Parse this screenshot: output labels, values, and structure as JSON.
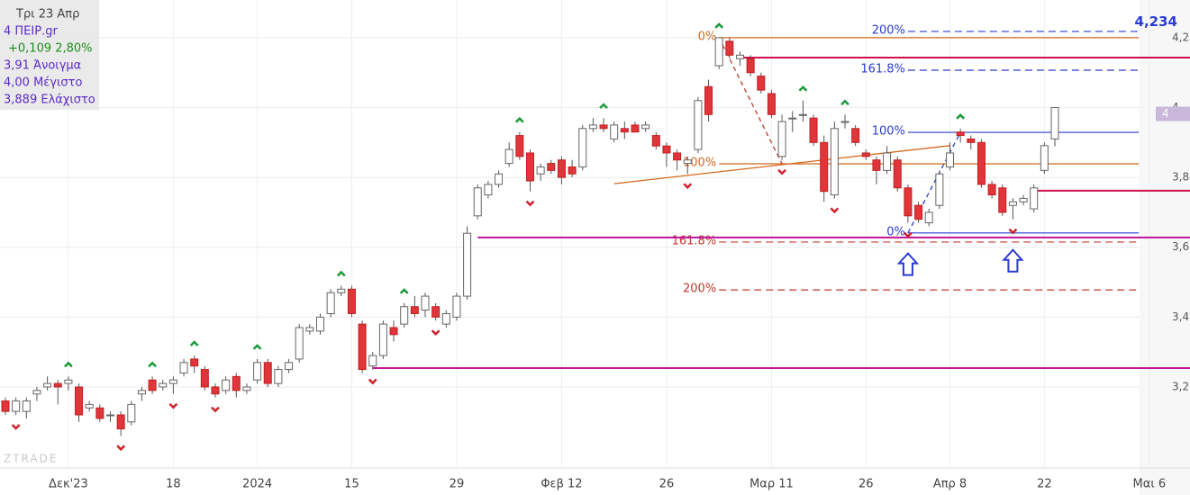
{
  "chart_data": {
    "type": "candlestick",
    "info": [
      "Τρι 23 Απρ",
      "4 ΠΕΙΡ.gr",
      "+0,109 2,80%",
      "3,91 Άνοιγμα",
      "4,00 Μέγιστο",
      "3,889 Ελάχιστο"
    ],
    "watermark": "ZTRADE",
    "categories": [
      null,
      null,
      null,
      null,
      null,
      null,
      "Δεκ'23",
      null,
      null,
      null,
      null,
      null,
      null,
      null,
      null,
      null,
      "18",
      null,
      null,
      null,
      null,
      null,
      null,
      null,
      "2024",
      null,
      null,
      null,
      null,
      null,
      null,
      null,
      null,
      "15",
      null,
      null,
      null,
      null,
      null,
      null,
      null,
      null,
      null,
      "29",
      null,
      null,
      null,
      null,
      null,
      null,
      null,
      null,
      null,
      "Φεβ 12",
      null,
      null,
      null,
      null,
      null,
      null,
      null,
      null,
      null,
      "26",
      null,
      null,
      null,
      null,
      null,
      null,
      null,
      null,
      null,
      "Μαρ 11",
      null,
      null,
      null,
      null,
      null,
      null,
      null,
      null,
      "26",
      null,
      null,
      null,
      null,
      null,
      null,
      null,
      "Απρ 8",
      null,
      null,
      null,
      null,
      null,
      null,
      null,
      null,
      "22",
      null,
      null,
      null,
      null,
      null,
      null,
      null,
      null,
      null,
      "Μαι 6",
      null
    ],
    "open": [
      3.16,
      3.13,
      3.13,
      3.18,
      3.2,
      3.21,
      3.21,
      3.2,
      3.14,
      3.14,
      3.12,
      3.12,
      3.1,
      3.18,
      3.22,
      3.2,
      3.21,
      3.24,
      3.28,
      3.25,
      3.2,
      3.19,
      3.23,
      3.19,
      3.22,
      3.27,
      3.21,
      3.25,
      3.28,
      3.36,
      3.36,
      3.41,
      3.47,
      3.48,
      3.38,
      3.26,
      3.29,
      3.37,
      3.38,
      3.43,
      3.42,
      3.43,
      3.38,
      3.4,
      3.46,
      3.69,
      3.75,
      3.78,
      3.84,
      3.92,
      3.87,
      3.81,
      3.84,
      3.85,
      3.83,
      3.83,
      3.94,
      3.95,
      3.91,
      3.94,
      3.95,
      3.94,
      3.92,
      3.89,
      3.87,
      3.84,
      3.88,
      4.06,
      4.12,
      4.19,
      4.14,
      4.14,
      4.09,
      4.04,
      3.86,
      3.97,
      3.98,
      3.97,
      3.9,
      3.75,
      3.96,
      3.94,
      3.87,
      3.85,
      3.82,
      3.85,
      3.77,
      3.72,
      3.67,
      3.72,
      3.83,
      3.93,
      3.91,
      3.9,
      3.78,
      3.77,
      3.72,
      3.73,
      3.71,
      3.82,
      3.91,
      null,
      null,
      null,
      null,
      null,
      null,
      null,
      null,
      null,
      null
    ],
    "high": [
      3.17,
      3.17,
      3.17,
      3.2,
      3.23,
      3.22,
      3.23,
      3.21,
      3.16,
      3.15,
      3.13,
      3.13,
      3.16,
      3.2,
      3.23,
      3.22,
      3.23,
      3.28,
      3.29,
      3.26,
      3.21,
      3.23,
      3.24,
      3.21,
      3.28,
      3.28,
      3.26,
      3.28,
      3.38,
      3.38,
      3.41,
      3.48,
      3.49,
      3.49,
      3.39,
      3.3,
      3.39,
      3.39,
      3.44,
      3.46,
      3.47,
      3.44,
      3.42,
      3.47,
      3.66,
      3.78,
      3.79,
      3.82,
      3.9,
      3.93,
      3.88,
      3.84,
      3.85,
      3.86,
      3.85,
      3.95,
      3.97,
      3.97,
      3.96,
      3.96,
      3.96,
      3.96,
      3.93,
      3.9,
      3.88,
      3.86,
      4.03,
      4.08,
      4.2,
      4.2,
      4.16,
      4.15,
      4.1,
      4.05,
      3.98,
      3.99,
      4.02,
      3.98,
      3.92,
      3.96,
      3.98,
      3.95,
      3.88,
      3.86,
      3.89,
      3.86,
      3.78,
      3.73,
      3.71,
      3.82,
      3.9,
      3.94,
      3.92,
      3.91,
      3.79,
      3.78,
      3.74,
      3.75,
      3.78,
      3.9,
      4.0,
      null,
      null,
      null,
      null,
      null,
      null,
      null,
      null,
      null,
      null
    ],
    "low": [
      3.12,
      3.12,
      3.11,
      3.16,
      3.19,
      3.15,
      3.19,
      3.1,
      3.13,
      3.1,
      3.1,
      3.06,
      3.09,
      3.16,
      3.18,
      3.19,
      3.18,
      3.23,
      3.24,
      3.19,
      3.17,
      3.18,
      3.17,
      3.18,
      3.21,
      3.2,
      3.2,
      3.24,
      3.27,
      3.35,
      3.35,
      3.4,
      3.46,
      3.4,
      3.24,
      3.25,
      3.28,
      3.33,
      3.37,
      3.4,
      3.4,
      3.39,
      3.37,
      3.39,
      3.45,
      3.68,
      3.74,
      3.77,
      3.83,
      3.85,
      3.76,
      3.79,
      3.81,
      3.78,
      3.8,
      3.82,
      3.93,
      3.93,
      3.9,
      3.91,
      3.93,
      3.93,
      3.88,
      3.83,
      3.82,
      3.81,
      3.87,
      3.96,
      4.11,
      4.14,
      4.12,
      4.09,
      4.04,
      3.97,
      3.85,
      3.93,
      3.96,
      3.89,
      3.73,
      3.74,
      3.94,
      3.89,
      3.85,
      3.78,
      3.81,
      3.76,
      3.67,
      3.67,
      3.66,
      3.71,
      3.82,
      3.9,
      3.88,
      3.77,
      3.74,
      3.69,
      3.68,
      3.72,
      3.7,
      3.81,
      3.889,
      null,
      null,
      null,
      null,
      null,
      null,
      null,
      null,
      null,
      null
    ],
    "close": [
      3.13,
      3.16,
      3.16,
      3.19,
      3.21,
      3.2,
      3.22,
      3.12,
      3.15,
      3.11,
      3.12,
      3.08,
      3.15,
      3.19,
      3.19,
      3.21,
      3.22,
      3.27,
      3.26,
      3.2,
      3.18,
      3.22,
      3.19,
      3.2,
      3.27,
      3.21,
      3.25,
      3.27,
      3.37,
      3.37,
      3.4,
      3.47,
      3.48,
      3.41,
      3.25,
      3.29,
      3.38,
      3.35,
      3.43,
      3.41,
      3.46,
      3.4,
      3.41,
      3.46,
      3.64,
      3.77,
      3.78,
      3.81,
      3.88,
      3.86,
      3.79,
      3.83,
      3.82,
      3.8,
      3.81,
      3.94,
      3.95,
      3.94,
      3.95,
      3.93,
      3.93,
      3.95,
      3.89,
      3.87,
      3.85,
      3.85,
      4.02,
      3.98,
      4.2,
      4.15,
      4.15,
      4.1,
      4.05,
      3.98,
      3.96,
      3.97,
      3.98,
      3.9,
      3.76,
      3.94,
      3.96,
      3.9,
      3.86,
      3.82,
      3.87,
      3.77,
      3.69,
      3.68,
      3.7,
      3.81,
      3.87,
      3.92,
      3.9,
      3.78,
      3.75,
      3.7,
      3.73,
      3.74,
      3.77,
      3.891,
      4.0,
      null,
      null,
      null,
      null,
      null,
      null,
      null,
      null,
      null,
      null
    ],
    "up_color": "#ffffff",
    "down_color": "#e0353a",
    "ylim": [
      2.968,
      4.308
    ],
    "yticks": [
      {
        "value": 3.2,
        "label": "3,2"
      },
      {
        "value": 3.4,
        "label": "3,4"
      },
      {
        "value": 3.6,
        "label": "3,6"
      },
      {
        "value": 3.8,
        "label": "3,8"
      },
      4,
      {
        "value": 4.2,
        "label": "4,2"
      }
    ],
    "grid": true,
    "last_price": 4,
    "price_label": {
      "value": 4.234,
      "label": "4,234"
    },
    "levels": [
      {
        "label": "0%",
        "value": 4.2,
        "from": 68,
        "to": 108,
        "color": "#d2691e",
        "dash": false
      },
      {
        "label": "100%",
        "value": 3.839,
        "from": 68,
        "to": 108,
        "color": "#d2691e",
        "dash": false
      },
      {
        "label": "161.8%",
        "value": 3.615,
        "from": 68,
        "to": 108,
        "color": "#c0392b",
        "dash": true
      },
      {
        "label": "200%",
        "value": 3.478,
        "from": 68,
        "to": 108,
        "color": "#c0392b",
        "dash": true
      },
      {
        "label": "0%",
        "value": 3.641,
        "from": 86,
        "to": 108,
        "color": "#2a3bd1",
        "dash": false
      },
      {
        "label": "100%",
        "value": 3.929,
        "from": 86,
        "to": 108,
        "color": "#2a3bd1",
        "dash": false
      },
      {
        "label": "161.8%",
        "value": 4.107,
        "from": 86,
        "to": 108,
        "color": "#2a3bd1",
        "dash": true
      },
      {
        "label": "200%",
        "value": 4.218,
        "from": 86,
        "to": 108,
        "color": "#2a3bd1",
        "dash": true
      }
    ],
    "hlines": [
      {
        "value": 4.143,
        "from": 70,
        "to": 113,
        "color": "#d0104a"
      },
      {
        "value": 3.762,
        "from": 98,
        "to": 113,
        "color": "#d0104a"
      },
      {
        "value": 3.628,
        "from": 45,
        "to": 113,
        "color": "#c0139a"
      },
      {
        "value": 3.254,
        "from": 35,
        "to": 113,
        "color": "#c0139a"
      }
    ],
    "trendlines": [
      {
        "from": [
          58,
          3.782
        ],
        "to": [
          90,
          3.891
        ],
        "color": "#d2691e",
        "dash": false
      },
      {
        "from": [
          68,
          4.2
        ],
        "to": [
          74,
          3.839
        ],
        "color": "#c0392b",
        "dash": true
      },
      {
        "from": [
          86,
          3.641
        ],
        "to": [
          91,
          3.929
        ],
        "color": "#2a3bd1",
        "dash": true
      }
    ],
    "signals": {
      "up": [
        6,
        14,
        18,
        24,
        32,
        38,
        49,
        57,
        68,
        76,
        80,
        91
      ],
      "down": [
        1,
        11,
        16,
        20,
        35,
        41,
        50,
        65,
        74,
        79,
        86,
        96
      ],
      "arrows": [
        86,
        96
      ]
    }
  }
}
